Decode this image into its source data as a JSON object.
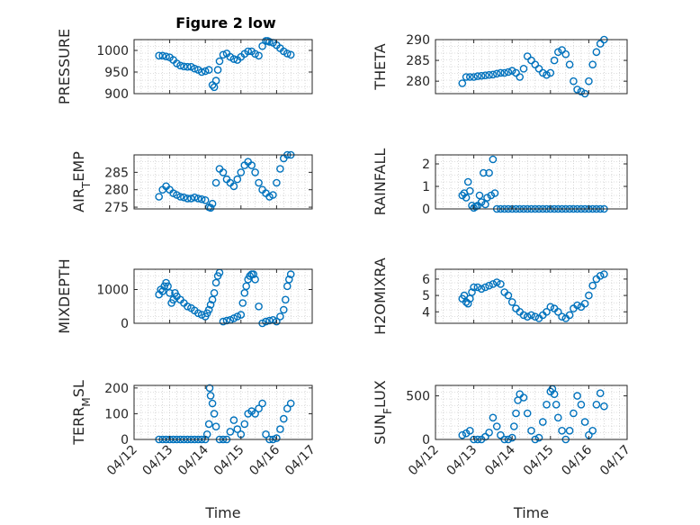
{
  "figure": {
    "title": "Figure 2 low"
  },
  "chart_data": [
    {
      "type": "scatter",
      "ylabel": "PRESSURE",
      "xlabel": "",
      "ylim": [
        900,
        1025
      ],
      "yticks": [
        900,
        950,
        1000
      ],
      "ytick_labels": [
        "900",
        "950",
        "1000"
      ],
      "xlim": [
        0,
        5
      ],
      "xtick_labels": [
        "04/12",
        "04/13",
        "04/14",
        "04/15",
        "04/16",
        "04/17"
      ],
      "grid": "minor",
      "marker": "circle",
      "color": "#0072BD",
      "x": [
        0.7,
        0.8,
        0.9,
        1.0,
        1.1,
        1.2,
        1.3,
        1.4,
        1.5,
        1.6,
        1.7,
        1.8,
        1.9,
        2.0,
        2.1,
        2.2,
        2.25,
        2.3,
        2.35,
        2.4,
        2.5,
        2.6,
        2.7,
        2.8,
        2.9,
        3.0,
        3.1,
        3.2,
        3.3,
        3.4,
        3.5,
        3.6,
        3.7,
        3.75,
        3.8,
        3.9,
        4.0,
        4.1,
        4.2,
        4.3,
        4.4
      ],
      "y": [
        988,
        988,
        986,
        984,
        978,
        970,
        965,
        963,
        962,
        962,
        958,
        955,
        950,
        952,
        955,
        920,
        915,
        930,
        955,
        975,
        990,
        993,
        985,
        980,
        978,
        985,
        992,
        998,
        998,
        992,
        988,
        1010,
        1022,
        1022,
        1020,
        1018,
        1012,
        1005,
        998,
        993,
        990
      ]
    },
    {
      "type": "scatter",
      "ylabel": "THETA",
      "xlabel": "",
      "ylim": [
        277,
        290
      ],
      "yticks": [
        280,
        285,
        290
      ],
      "ytick_labels": [
        "280",
        "285",
        "290"
      ],
      "xlim": [
        0,
        5
      ],
      "xtick_labels": [
        "04/12",
        "04/13",
        "04/14",
        "04/15",
        "04/16",
        "04/17"
      ],
      "grid": "minor",
      "marker": "circle",
      "color": "#0072BD",
      "x": [
        0.7,
        0.8,
        0.9,
        1.0,
        1.1,
        1.2,
        1.3,
        1.4,
        1.5,
        1.6,
        1.7,
        1.8,
        1.9,
        2.0,
        2.1,
        2.2,
        2.3,
        2.4,
        2.5,
        2.6,
        2.7,
        2.8,
        2.9,
        3.0,
        3.1,
        3.2,
        3.3,
        3.4,
        3.5,
        3.6,
        3.7,
        3.8,
        3.9,
        4.0,
        4.1,
        4.2,
        4.3,
        4.4
      ],
      "y": [
        279.5,
        281,
        281,
        281,
        281.2,
        281.3,
        281.4,
        281.5,
        281.6,
        281.8,
        282,
        282,
        282.2,
        282.5,
        282,
        281,
        283,
        286,
        285,
        284,
        283,
        282,
        281.5,
        282,
        285,
        287,
        287.5,
        286.5,
        284,
        280,
        278,
        277.5,
        277,
        280,
        284,
        287,
        289,
        290
      ]
    },
    {
      "type": "scatter",
      "ylabel": "AIR_TEMP",
      "xlabel": "",
      "ylim": [
        274.5,
        290
      ],
      "yticks": [
        275,
        280,
        285
      ],
      "ytick_labels": [
        "275",
        "280",
        "285"
      ],
      "xlim": [
        0,
        5
      ],
      "xtick_labels": [
        "04/12",
        "04/13",
        "04/14",
        "04/15",
        "04/16",
        "04/17"
      ],
      "grid": "minor",
      "marker": "circle",
      "color": "#0072BD",
      "x": [
        0.7,
        0.8,
        0.9,
        1.0,
        1.1,
        1.2,
        1.3,
        1.4,
        1.5,
        1.6,
        1.7,
        1.8,
        1.9,
        2.0,
        2.1,
        2.15,
        2.2,
        2.3,
        2.4,
        2.5,
        2.6,
        2.7,
        2.8,
        2.9,
        3.0,
        3.1,
        3.2,
        3.3,
        3.4,
        3.5,
        3.6,
        3.7,
        3.8,
        3.9,
        4.0,
        4.1,
        4.2,
        4.3,
        4.4
      ],
      "y": [
        278,
        280,
        281,
        280,
        279,
        278.5,
        278,
        277.8,
        277.5,
        277.5,
        277.8,
        277.5,
        277.3,
        277,
        275,
        274.8,
        276,
        282,
        286,
        285,
        283,
        282,
        281,
        283,
        285,
        287,
        288,
        287,
        285,
        282,
        280,
        279,
        278,
        278.5,
        282,
        286,
        289,
        290,
        290
      ]
    },
    {
      "type": "scatter",
      "ylabel": "RAINFALL",
      "xlabel": "",
      "ylim": [
        0,
        2.4
      ],
      "yticks": [
        0,
        1,
        2
      ],
      "ytick_labels": [
        "0",
        "1",
        "2"
      ],
      "xlim": [
        0,
        5
      ],
      "xtick_labels": [
        "04/12",
        "04/13",
        "04/14",
        "04/15",
        "04/16",
        "04/17"
      ],
      "grid": "minor",
      "marker": "circle",
      "color": "#0072BD",
      "x": [
        0.7,
        0.75,
        0.8,
        0.85,
        0.9,
        0.95,
        1.0,
        1.05,
        1.1,
        1.15,
        1.2,
        1.25,
        1.3,
        1.35,
        1.4,
        1.45,
        1.5,
        1.55,
        1.6,
        1.7,
        1.8,
        1.9,
        2.0,
        2.1,
        2.2,
        2.3,
        2.4,
        2.5,
        2.6,
        2.7,
        2.8,
        2.9,
        3.0,
        3.1,
        3.2,
        3.3,
        3.4,
        3.5,
        3.6,
        3.7,
        3.8,
        3.9,
        4.0,
        4.1,
        4.2,
        4.3,
        4.4
      ],
      "y": [
        0.6,
        0.7,
        0.5,
        1.2,
        0.8,
        0.15,
        0.05,
        0.1,
        0.15,
        0.6,
        0.3,
        1.6,
        0.2,
        0.5,
        1.6,
        0.6,
        2.2,
        0.7,
        0,
        0,
        0,
        0,
        0,
        0,
        0,
        0,
        0,
        0,
        0,
        0,
        0,
        0,
        0,
        0,
        0,
        0,
        0,
        0,
        0,
        0,
        0,
        0,
        0,
        0,
        0,
        0,
        0
      ]
    },
    {
      "type": "scatter",
      "ylabel": "MIXDEPTH",
      "xlabel": "",
      "ylim": [
        0,
        1600
      ],
      "yticks": [
        0,
        1000
      ],
      "ytick_labels": [
        "0",
        "1000"
      ],
      "xlim": [
        0,
        5
      ],
      "xtick_labels": [
        "04/12",
        "04/13",
        "04/14",
        "04/15",
        "04/16",
        "04/17"
      ],
      "grid": "minor",
      "marker": "circle",
      "color": "#0072BD",
      "x": [
        0.7,
        0.75,
        0.8,
        0.85,
        0.9,
        0.95,
        1.0,
        1.05,
        1.1,
        1.15,
        1.2,
        1.3,
        1.4,
        1.5,
        1.6,
        1.7,
        1.8,
        1.9,
        2.0,
        2.05,
        2.1,
        2.15,
        2.2,
        2.25,
        2.3,
        2.35,
        2.4,
        2.5,
        2.6,
        2.7,
        2.8,
        2.9,
        3.0,
        3.05,
        3.1,
        3.15,
        3.2,
        3.25,
        3.3,
        3.35,
        3.4,
        3.5,
        3.6,
        3.7,
        3.8,
        3.9,
        4.0,
        4.1,
        4.2,
        4.25,
        4.3,
        4.35,
        4.4
      ],
      "y": [
        850,
        1000,
        950,
        1100,
        1200,
        1100,
        900,
        600,
        700,
        900,
        800,
        700,
        600,
        500,
        450,
        380,
        300,
        250,
        200,
        300,
        400,
        550,
        700,
        900,
        1200,
        1400,
        1500,
        50,
        80,
        100,
        150,
        200,
        250,
        600,
        900,
        1100,
        1300,
        1400,
        1450,
        1450,
        1300,
        500,
        0,
        50,
        80,
        100,
        50,
        200,
        400,
        700,
        1100,
        1300,
        1450
      ]
    },
    {
      "type": "scatter",
      "ylabel": "H2OMIXRA",
      "xlabel": "",
      "ylim": [
        3.3,
        6.6
      ],
      "yticks": [
        4,
        5,
        6
      ],
      "ytick_labels": [
        "4",
        "5",
        "6"
      ],
      "xlim": [
        0,
        5
      ],
      "xtick_labels": [
        "04/12",
        "04/13",
        "04/14",
        "04/15",
        "04/16",
        "04/17"
      ],
      "grid": "minor",
      "marker": "circle",
      "color": "#0072BD",
      "x": [
        0.7,
        0.75,
        0.8,
        0.85,
        0.9,
        0.95,
        1.0,
        1.1,
        1.2,
        1.3,
        1.4,
        1.5,
        1.6,
        1.7,
        1.8,
        1.9,
        2.0,
        2.1,
        2.2,
        2.3,
        2.4,
        2.5,
        2.6,
        2.7,
        2.8,
        2.9,
        3.0,
        3.1,
        3.2,
        3.3,
        3.4,
        3.5,
        3.6,
        3.7,
        3.8,
        3.9,
        4.0,
        4.1,
        4.2,
        4.3,
        4.4
      ],
      "y": [
        4.8,
        5.0,
        4.6,
        4.5,
        4.8,
        5.2,
        5.5,
        5.5,
        5.4,
        5.5,
        5.6,
        5.7,
        5.8,
        5.7,
        5.2,
        5.0,
        4.6,
        4.2,
        4.0,
        3.8,
        3.7,
        3.8,
        3.7,
        3.6,
        3.8,
        4.0,
        4.3,
        4.2,
        4.0,
        3.7,
        3.6,
        3.8,
        4.2,
        4.4,
        4.3,
        4.5,
        5.0,
        5.6,
        6.0,
        6.2,
        6.3
      ]
    },
    {
      "type": "scatter",
      "ylabel": "TERR_MSL",
      "xlabel": "Time",
      "ylim": [
        0,
        210
      ],
      "yticks": [
        0,
        100,
        200
      ],
      "ytick_labels": [
        "0",
        "100",
        "200"
      ],
      "xlim": [
        0,
        5
      ],
      "xtick_labels": [
        "04/12",
        "04/13",
        "04/14",
        "04/15",
        "04/16",
        "04/17"
      ],
      "grid": "minor",
      "marker": "circle",
      "color": "#0072BD",
      "x": [
        0.7,
        0.8,
        0.9,
        1.0,
        1.1,
        1.2,
        1.3,
        1.4,
        1.5,
        1.6,
        1.7,
        1.8,
        1.9,
        2.0,
        2.05,
        2.1,
        2.12,
        2.15,
        2.2,
        2.25,
        2.3,
        2.4,
        2.5,
        2.6,
        2.7,
        2.8,
        2.9,
        3.0,
        3.1,
        3.2,
        3.3,
        3.4,
        3.5,
        3.6,
        3.7,
        3.8,
        3.9,
        4.0,
        4.1,
        4.2,
        4.3,
        4.4
      ],
      "y": [
        0,
        0,
        0,
        0,
        0,
        0,
        0,
        0,
        0,
        0,
        0,
        0,
        0,
        0,
        20,
        60,
        200,
        170,
        140,
        100,
        50,
        0,
        0,
        0,
        30,
        75,
        40,
        20,
        60,
        100,
        110,
        100,
        120,
        140,
        20,
        0,
        0,
        5,
        40,
        80,
        120,
        140
      ]
    },
    {
      "type": "scatter",
      "ylabel": "SUN_FLUX",
      "xlabel": "Time",
      "ylim": [
        0,
        620
      ],
      "yticks": [
        0,
        500
      ],
      "ytick_labels": [
        "0",
        "500"
      ],
      "xlim": [
        0,
        5
      ],
      "xtick_labels": [
        "04/12",
        "04/13",
        "04/14",
        "04/15",
        "04/16",
        "04/17"
      ],
      "grid": "minor",
      "marker": "circle",
      "color": "#0072BD",
      "x": [
        0.7,
        0.8,
        0.9,
        1.0,
        1.1,
        1.2,
        1.3,
        1.4,
        1.5,
        1.6,
        1.7,
        1.8,
        1.9,
        2.0,
        2.05,
        2.1,
        2.15,
        2.2,
        2.3,
        2.4,
        2.5,
        2.6,
        2.7,
        2.8,
        2.9,
        3.0,
        3.05,
        3.1,
        3.15,
        3.2,
        3.3,
        3.4,
        3.5,
        3.6,
        3.7,
        3.8,
        3.9,
        4.0,
        4.1,
        4.2,
        4.3,
        4.4
      ],
      "y": [
        50,
        70,
        100,
        0,
        0,
        0,
        30,
        80,
        250,
        150,
        50,
        0,
        0,
        20,
        150,
        300,
        450,
        520,
        480,
        300,
        100,
        0,
        20,
        200,
        400,
        550,
        580,
        520,
        400,
        250,
        100,
        0,
        100,
        300,
        500,
        400,
        200,
        50,
        100,
        400,
        530,
        380
      ]
    }
  ]
}
